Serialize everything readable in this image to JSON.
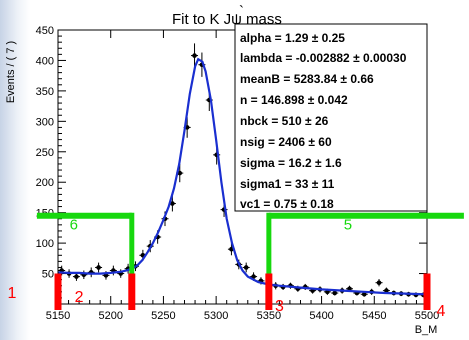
{
  "chart_data": {
    "type": "scatter",
    "title": "Fit to K  Jψ mass",
    "title_mark": "`",
    "ylabel": "Events / ( 7 )",
    "xlabel": "B_M",
    "xlim": [
      5150,
      5500
    ],
    "ylim": [
      0,
      450
    ],
    "x_ticks": [
      5150,
      5200,
      5250,
      5300,
      5350,
      5400,
      5450,
      5500
    ],
    "y_ticks": [
      50,
      100,
      150,
      200,
      250,
      300,
      350,
      400,
      450
    ],
    "grid": false,
    "series": [
      {
        "kind": "data points with error bars",
        "color": "#000000",
        "points": [
          {
            "x": 5153.5,
            "y": 55,
            "err": 8
          },
          {
            "x": 5160.5,
            "y": 50,
            "err": 7
          },
          {
            "x": 5167.5,
            "y": 45,
            "err": 7
          },
          {
            "x": 5174.5,
            "y": 48,
            "err": 7
          },
          {
            "x": 5181.5,
            "y": 52,
            "err": 8
          },
          {
            "x": 5188.5,
            "y": 60,
            "err": 8
          },
          {
            "x": 5195.5,
            "y": 47,
            "err": 7
          },
          {
            "x": 5202.5,
            "y": 55,
            "err": 8
          },
          {
            "x": 5209.5,
            "y": 50,
            "err": 7
          },
          {
            "x": 5216.5,
            "y": 58,
            "err": 8
          },
          {
            "x": 5223.5,
            "y": 62,
            "err": 8
          },
          {
            "x": 5230.5,
            "y": 80,
            "err": 9
          },
          {
            "x": 5237.5,
            "y": 95,
            "err": 10
          },
          {
            "x": 5244.5,
            "y": 110,
            "err": 11
          },
          {
            "x": 5251.5,
            "y": 140,
            "err": 12
          },
          {
            "x": 5258.5,
            "y": 165,
            "err": 13
          },
          {
            "x": 5265.5,
            "y": 215,
            "err": 15
          },
          {
            "x": 5272.5,
            "y": 290,
            "err": 17
          },
          {
            "x": 5279.5,
            "y": 408,
            "err": 20
          },
          {
            "x": 5286.5,
            "y": 393,
            "err": 20
          },
          {
            "x": 5293.5,
            "y": 335,
            "err": 18
          },
          {
            "x": 5300.5,
            "y": 245,
            "err": 16
          },
          {
            "x": 5307.5,
            "y": 155,
            "err": 12
          },
          {
            "x": 5314.5,
            "y": 90,
            "err": 10
          },
          {
            "x": 5321.5,
            "y": 65,
            "err": 8
          },
          {
            "x": 5328.5,
            "y": 60,
            "err": 8
          },
          {
            "x": 5335.5,
            "y": 45,
            "err": 7
          },
          {
            "x": 5342.5,
            "y": 38,
            "err": 6
          },
          {
            "x": 5349.5,
            "y": 33,
            "err": 6
          },
          {
            "x": 5356.5,
            "y": 30,
            "err": 6
          },
          {
            "x": 5363.5,
            "y": 28,
            "err": 5
          },
          {
            "x": 5370.5,
            "y": 30,
            "err": 5
          },
          {
            "x": 5377.5,
            "y": 25,
            "err": 5
          },
          {
            "x": 5384.5,
            "y": 28,
            "err": 5
          },
          {
            "x": 5391.5,
            "y": 22,
            "err": 5
          },
          {
            "x": 5398.5,
            "y": 24,
            "err": 5
          },
          {
            "x": 5405.5,
            "y": 20,
            "err": 5
          },
          {
            "x": 5412.5,
            "y": 18,
            "err": 4
          },
          {
            "x": 5419.5,
            "y": 22,
            "err": 5
          },
          {
            "x": 5426.5,
            "y": 25,
            "err": 5
          },
          {
            "x": 5433.5,
            "y": 18,
            "err": 4
          },
          {
            "x": 5440.5,
            "y": 16,
            "err": 4
          },
          {
            "x": 5447.5,
            "y": 20,
            "err": 5
          },
          {
            "x": 5454.5,
            "y": 35,
            "err": 6
          },
          {
            "x": 5461.5,
            "y": 22,
            "err": 5
          },
          {
            "x": 5468.5,
            "y": 18,
            "err": 4
          },
          {
            "x": 5475.5,
            "y": 17,
            "err": 4
          },
          {
            "x": 5482.5,
            "y": 16,
            "err": 4
          },
          {
            "x": 5489.5,
            "y": 15,
            "err": 4
          },
          {
            "x": 5496.5,
            "y": 15,
            "err": 4
          }
        ]
      },
      {
        "kind": "fit curve",
        "color": "#1a2fd0",
        "points": [
          {
            "x": 5150,
            "y": 52
          },
          {
            "x": 5160,
            "y": 51
          },
          {
            "x": 5170,
            "y": 51
          },
          {
            "x": 5180,
            "y": 50
          },
          {
            "x": 5190,
            "y": 50
          },
          {
            "x": 5200,
            "y": 51
          },
          {
            "x": 5210,
            "y": 53
          },
          {
            "x": 5215,
            "y": 55
          },
          {
            "x": 5220,
            "y": 58
          },
          {
            "x": 5225,
            "y": 63
          },
          {
            "x": 5230,
            "y": 72
          },
          {
            "x": 5235,
            "y": 85
          },
          {
            "x": 5240,
            "y": 100
          },
          {
            "x": 5245,
            "y": 118
          },
          {
            "x": 5250,
            "y": 138
          },
          {
            "x": 5255,
            "y": 160
          },
          {
            "x": 5260,
            "y": 190
          },
          {
            "x": 5265,
            "y": 230
          },
          {
            "x": 5270,
            "y": 285
          },
          {
            "x": 5275,
            "y": 345
          },
          {
            "x": 5280,
            "y": 390
          },
          {
            "x": 5283,
            "y": 402
          },
          {
            "x": 5287,
            "y": 398
          },
          {
            "x": 5290,
            "y": 382
          },
          {
            "x": 5295,
            "y": 335
          },
          {
            "x": 5300,
            "y": 270
          },
          {
            "x": 5305,
            "y": 200
          },
          {
            "x": 5310,
            "y": 140
          },
          {
            "x": 5315,
            "y": 100
          },
          {
            "x": 5320,
            "y": 72
          },
          {
            "x": 5325,
            "y": 55
          },
          {
            "x": 5330,
            "y": 45
          },
          {
            "x": 5340,
            "y": 36
          },
          {
            "x": 5350,
            "y": 32
          },
          {
            "x": 5360,
            "y": 30
          },
          {
            "x": 5380,
            "y": 27
          },
          {
            "x": 5400,
            "y": 24
          },
          {
            "x": 5420,
            "y": 22
          },
          {
            "x": 5440,
            "y": 20
          },
          {
            "x": 5460,
            "y": 18
          },
          {
            "x": 5480,
            "y": 17
          },
          {
            "x": 5500,
            "y": 16
          }
        ]
      }
    ],
    "annotations": {
      "green_boxes": [
        {
          "label": "6",
          "x_range": [
            5130,
            5220
          ],
          "y_top": 145
        },
        {
          "label": "5",
          "x_range": [
            5350,
            5535
          ],
          "y_top": 145
        }
      ],
      "red_markers": [
        {
          "label": "1",
          "x": 5150
        },
        {
          "label": "2",
          "x": 5220
        },
        {
          "label": "3",
          "x": 5350
        },
        {
          "label": "4",
          "x": 5500
        }
      ]
    },
    "stats_box": [
      "alpha =  1.29 ± 0.25",
      "lambda = -0.002882 ± 0.00030",
      "meanB = 5283.84 ± 0.66",
      "n =  146.898 ± 0.042",
      "nbck =  510 ± 26",
      "nsig =  2406 ± 60",
      "sigma =  16.2 ± 1.6",
      "sigma1 =  33 ± 11",
      "vc1 =  0.75 ± 0.18"
    ],
    "colors": {
      "fit_curve": "#1a2fd0",
      "annotation_green": "#17d80e",
      "annotation_red": "#ff0000"
    }
  }
}
